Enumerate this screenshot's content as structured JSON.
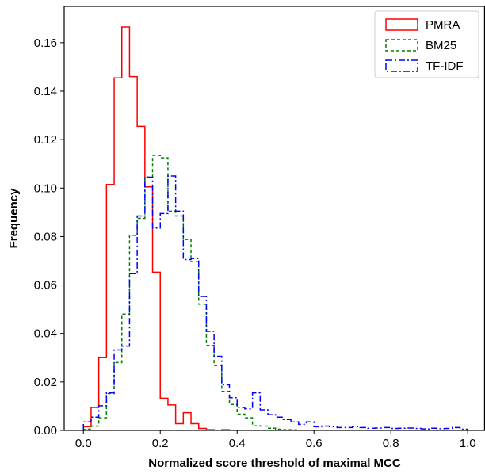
{
  "chart_data": {
    "type": "histogram",
    "xlabel": "Normalized score threshold of maximal MCC",
    "ylabel": "Frequency",
    "xlim": [
      -0.05,
      1.045
    ],
    "ylim": [
      0,
      0.175
    ],
    "x_ticks": [
      0.0,
      0.2,
      0.4,
      0.6,
      0.8,
      1.0
    ],
    "x_tick_labels": [
      "0.0",
      "0.2",
      "0.4",
      "0.6",
      "0.8",
      "1.0"
    ],
    "y_ticks": [
      0.0,
      0.02,
      0.04,
      0.06,
      0.08,
      0.1,
      0.12,
      0.14,
      0.16
    ],
    "y_tick_labels": [
      "0.00",
      "0.02",
      "0.04",
      "0.06",
      "0.08",
      "0.10",
      "0.12",
      "0.14",
      "0.16"
    ],
    "legend_position": "top-right",
    "bin_edges": [
      0.0,
      0.02,
      0.04,
      0.06,
      0.08,
      0.1,
      0.12,
      0.14,
      0.16,
      0.18,
      0.2,
      0.22,
      0.24,
      0.26,
      0.28,
      0.3,
      0.32,
      0.34,
      0.36,
      0.38,
      0.4,
      0.42,
      0.44,
      0.46,
      0.48,
      0.5,
      0.52,
      0.54,
      0.56,
      0.58,
      0.6,
      0.62,
      0.64,
      0.66,
      0.68,
      0.7,
      0.72,
      0.74,
      0.76,
      0.78,
      0.8,
      0.82,
      0.84,
      0.86,
      0.88,
      0.9,
      0.92,
      0.94,
      0.96,
      0.98,
      1.0
    ],
    "series": [
      {
        "name": "PMRA",
        "color": "#ff0000",
        "dash": "",
        "values": [
          0.0015,
          0.0095,
          0.03,
          0.1015,
          0.1455,
          0.1665,
          0.146,
          0.1255,
          0.1005,
          0.0653,
          0.0133,
          0.0105,
          0.0028,
          0.0073,
          0.0028,
          0.0008,
          0.0003,
          0.0001,
          0.0003,
          0,
          0,
          0,
          0,
          0,
          0,
          0,
          0,
          0,
          0,
          0,
          0,
          0,
          0,
          0,
          0,
          0,
          0,
          0,
          0,
          0,
          0,
          0,
          0,
          0,
          0,
          0,
          0,
          0,
          0,
          0
        ]
      },
      {
        "name": "BM25",
        "color": "#008000",
        "dash": "4,3",
        "values": [
          0.0005,
          0.0018,
          0.0052,
          0.0152,
          0.028,
          0.048,
          0.0805,
          0.0875,
          0.1045,
          0.1135,
          0.1125,
          0.0905,
          0.0885,
          0.0788,
          0.0696,
          0.0521,
          0.0351,
          0.0268,
          0.0161,
          0.0107,
          0.0067,
          0.0052,
          0.0019,
          0.0018,
          0.0009,
          0.0005,
          0.0003,
          0.0002,
          0.0001,
          0,
          0,
          0,
          0,
          0,
          0,
          0,
          0,
          0,
          0,
          0,
          0,
          0,
          0,
          0,
          0,
          0,
          0,
          0,
          0,
          0
        ]
      },
      {
        "name": "TF-IDF",
        "color": "#0000ff",
        "dash": "8,3,2,3",
        "values": [
          0.0035,
          0.0055,
          0.0102,
          0.0155,
          0.0332,
          0.0348,
          0.0647,
          0.0885,
          0.1045,
          0.0835,
          0.0895,
          0.105,
          0.0905,
          0.0705,
          0.0709,
          0.0553,
          0.0409,
          0.0306,
          0.0188,
          0.0135,
          0.0095,
          0.0089,
          0.0155,
          0.0085,
          0.0065,
          0.0055,
          0.0045,
          0.0035,
          0.0025,
          0.0035,
          0.0015,
          0.0018,
          0.0015,
          0.0012,
          0.0012,
          0.0015,
          0.0012,
          0.0009,
          0.001,
          0.0012,
          0.0008,
          0.0009,
          0.001,
          0.0008,
          0.0006,
          0.0009,
          0.0007,
          0.0008,
          0.0012,
          0.0005
        ]
      }
    ]
  }
}
